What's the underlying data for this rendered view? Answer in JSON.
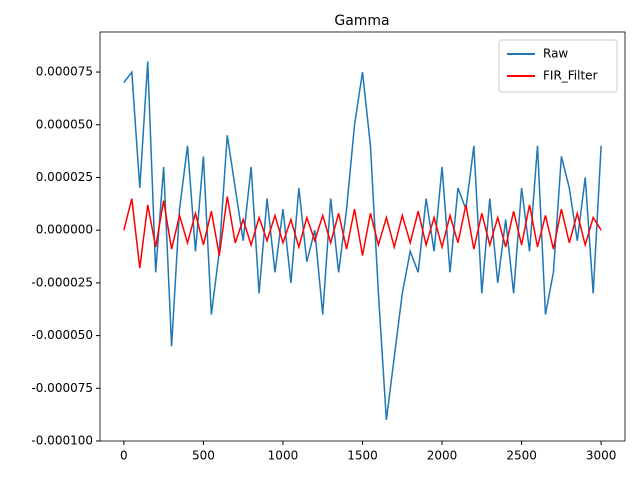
{
  "chart_data": {
    "type": "line",
    "title": "Gamma",
    "x": [
      0,
      50,
      100,
      150,
      200,
      250,
      300,
      350,
      400,
      450,
      500,
      550,
      600,
      650,
      700,
      750,
      800,
      850,
      900,
      950,
      1000,
      1050,
      1100,
      1150,
      1200,
      1250,
      1300,
      1350,
      1400,
      1450,
      1500,
      1550,
      1600,
      1650,
      1700,
      1750,
      1800,
      1850,
      1900,
      1950,
      2000,
      2050,
      2100,
      2150,
      2200,
      2250,
      2300,
      2350,
      2400,
      2450,
      2500,
      2550,
      2600,
      2650,
      2700,
      2750,
      2800,
      2850,
      2900,
      2950,
      3000
    ],
    "series": [
      {
        "name": "Raw",
        "color": "#1f77b4",
        "values": [
          7e-05,
          7.5e-05,
          2e-05,
          8e-05,
          -2e-05,
          3e-05,
          -5.5e-05,
          1e-05,
          4e-05,
          -1e-05,
          3.5e-05,
          -4e-05,
          -1e-05,
          4.5e-05,
          2e-05,
          -5e-06,
          3e-05,
          -3e-05,
          1.5e-05,
          -2e-05,
          1e-05,
          -2.5e-05,
          2e-05,
          -1.5e-05,
          0,
          -4e-05,
          1.5e-05,
          -2e-05,
          1e-05,
          5e-05,
          7.5e-05,
          4e-05,
          -3e-05,
          -9e-05,
          -6e-05,
          -3e-05,
          -1e-05,
          -2e-05,
          1.5e-05,
          -1e-05,
          3e-05,
          -2e-05,
          2e-05,
          1e-05,
          4e-05,
          -3e-05,
          1.5e-05,
          -2.5e-05,
          5e-06,
          -3e-05,
          2e-05,
          -1e-05,
          4e-05,
          -4e-05,
          -2e-05,
          3.5e-05,
          2e-05,
          -5e-06,
          2.5e-05,
          -3e-05,
          4e-05
        ]
      },
      {
        "name": "FIR_Filter",
        "color": "#ff0000",
        "values": [
          0,
          1.5e-05,
          -1.8e-05,
          1.2e-05,
          -8e-06,
          1.4e-05,
          -9e-06,
          7e-06,
          -6e-06,
          8e-06,
          -7e-06,
          9e-06,
          -1.2e-05,
          1.6e-05,
          -6e-06,
          5e-06,
          -7e-06,
          6e-06,
          -5e-06,
          7e-06,
          -6e-06,
          5e-06,
          -8e-06,
          6e-06,
          -5e-06,
          7e-06,
          -6e-06,
          8e-06,
          -9e-06,
          1e-05,
          -1.2e-05,
          8e-06,
          -7e-06,
          6e-06,
          -8e-06,
          7e-06,
          -6e-06,
          9e-06,
          -7e-06,
          6e-06,
          -8e-06,
          7e-06,
          -6e-06,
          1.2e-05,
          -9e-06,
          8e-06,
          -7e-06,
          6e-06,
          -8e-06,
          9e-06,
          -7e-06,
          1.2e-05,
          -8e-06,
          7e-06,
          -9e-06,
          1e-05,
          -6e-06,
          8e-06,
          -7e-06,
          6e-06,
          0
        ]
      }
    ],
    "xlim": [
      -150,
      3150
    ],
    "xticks": [
      0,
      500,
      1000,
      1500,
      2000,
      2500,
      3000
    ],
    "ylim": [
      -0.0001,
      9.4e-05
    ],
    "yticks": [
      {
        "value": -0.0001,
        "label": "-0.000100"
      },
      -7.5e-05,
      {
        "value": -5e-05,
        "label": "-0.000050"
      },
      -2.5e-05,
      {
        "value": 0,
        "label": "0.000000"
      },
      2.5e-05,
      {
        "value": 5e-05,
        "label": "0.000050"
      },
      7.5e-05
    ],
    "legend": "upper right"
  }
}
